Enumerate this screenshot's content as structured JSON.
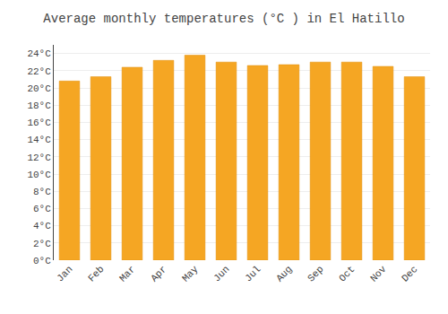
{
  "chart_data": {
    "type": "bar",
    "title": "Average monthly temperatures (°C ) in El Hatillo",
    "categories": [
      "Jan",
      "Feb",
      "Mar",
      "Apr",
      "May",
      "Jun",
      "Jul",
      "Aug",
      "Sep",
      "Oct",
      "Nov",
      "Dec"
    ],
    "values": [
      20.8,
      21.3,
      22.4,
      23.2,
      23.8,
      23.0,
      22.6,
      22.7,
      23.0,
      23.0,
      22.5,
      21.3
    ],
    "color": "#F5A623",
    "ylim": [
      0,
      25
    ],
    "yticks": [
      {
        "value": 0,
        "label": "0°C"
      },
      {
        "value": 2,
        "label": "2°C"
      },
      {
        "value": 4,
        "label": "4°C"
      },
      {
        "value": 6,
        "label": "6°C"
      },
      {
        "value": 8,
        "label": "8°C"
      },
      {
        "value": 10,
        "label": "10°C"
      },
      {
        "value": 12,
        "label": "12°C"
      },
      {
        "value": 14,
        "label": "14°C"
      },
      {
        "value": 16,
        "label": "16°C"
      },
      {
        "value": 18,
        "label": "18°C"
      },
      {
        "value": 20,
        "label": "20°C"
      },
      {
        "value": 22,
        "label": "22°C"
      },
      {
        "value": 24,
        "label": "24°C"
      }
    ],
    "grid": true
  }
}
